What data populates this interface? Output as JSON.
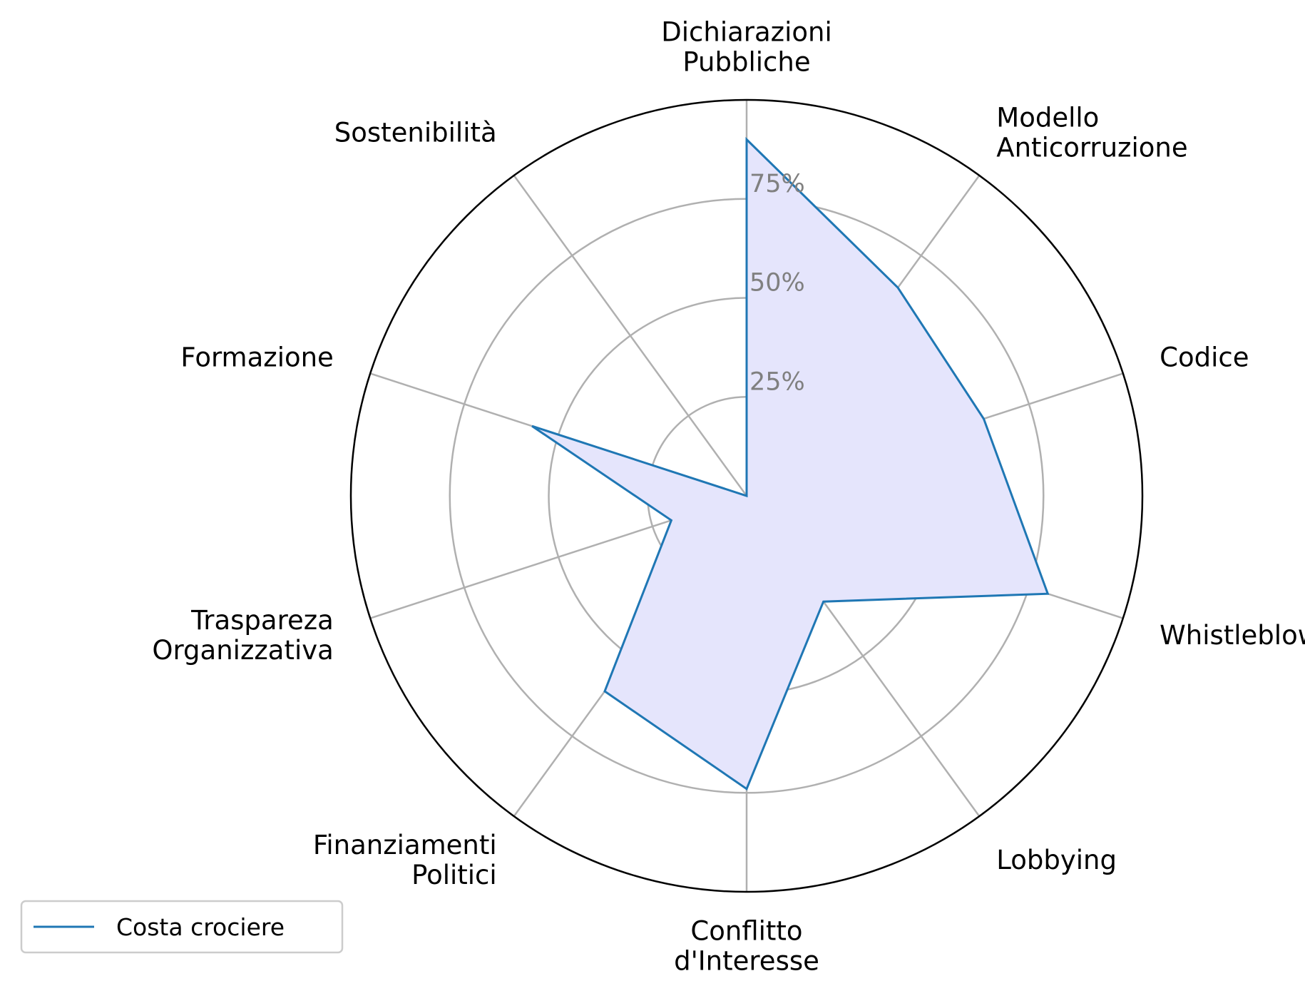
{
  "chart_data": {
    "type": "radar",
    "categories": [
      [
        "Dichiarazioni",
        "Pubbliche"
      ],
      [
        "Modello",
        "Anticorruzione"
      ],
      [
        "Codice"
      ],
      [
        "Whistleblowing"
      ],
      [
        "Lobbying"
      ],
      [
        "Conflitto",
        "d'Interesse"
      ],
      [
        "Finanziamenti",
        "Politici"
      ],
      [
        "Traspareza",
        "Organizzativa"
      ],
      [
        "Formazione"
      ],
      [
        "Sostenibilità"
      ]
    ],
    "series": [
      {
        "name": "Costa crociere",
        "values": [
          90,
          65,
          63,
          80,
          33,
          74,
          61,
          20,
          57,
          0
        ]
      }
    ],
    "rlim": [
      0,
      100
    ],
    "rticks": [
      25,
      50,
      75
    ],
    "rtick_labels": [
      "25%",
      "50%",
      "75%"
    ],
    "grid": true,
    "legend_position": "bottom-left",
    "colors": {
      "line": "#1f77b4",
      "fill": "#e5e5fc",
      "grid": "#b0b0b0",
      "frame": "#000000",
      "tick": "#808080"
    }
  }
}
